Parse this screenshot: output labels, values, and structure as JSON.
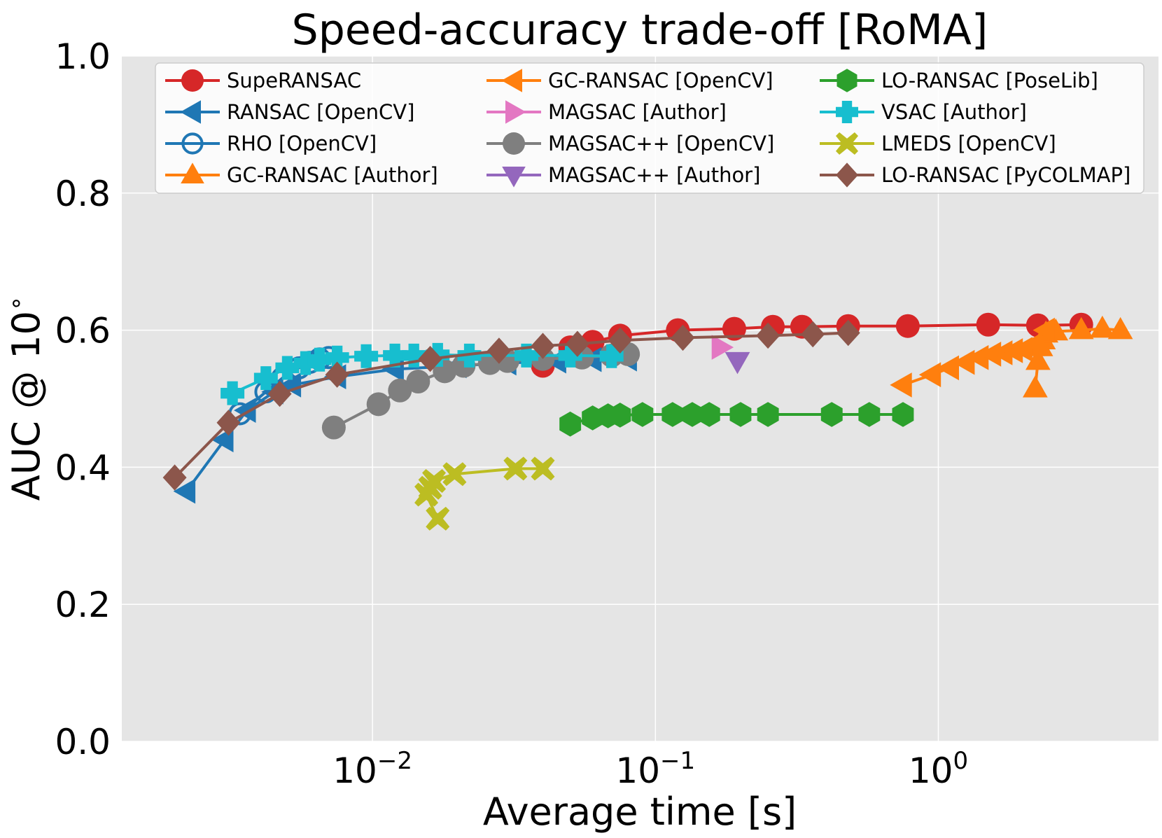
{
  "chart_data": {
    "type": "line",
    "title": "Speed-accuracy trade-off [RoMA]",
    "xlabel": "Average time [s]",
    "ylabel": "AUC @ 10",
    "ylabel_superscript": "∘",
    "xscale": "log",
    "xlim": [
      0.0013,
      6.0
    ],
    "ylim": [
      0.0,
      1.0
    ],
    "grid": true,
    "legend_position": "top",
    "legend_columns": 3,
    "x_ticks": [
      {
        "value": 0.01,
        "base": "10",
        "exp": "−2"
      },
      {
        "value": 0.1,
        "base": "10",
        "exp": "−1"
      },
      {
        "value": 1,
        "base": "10",
        "exp": "0"
      }
    ],
    "y_ticks": [
      {
        "value": 0.0,
        "label": "0.0"
      },
      {
        "value": 0.2,
        "label": "0.2"
      },
      {
        "value": 0.4,
        "label": "0.4"
      },
      {
        "value": 0.6,
        "label": "0.6"
      },
      {
        "value": 0.8,
        "label": "0.8"
      },
      {
        "value": 1.0,
        "label": "1.0"
      }
    ],
    "series": [
      {
        "name": "SupeRANSAC",
        "color": "#d62728",
        "marker": "circle",
        "x": [
          0.04,
          0.05,
          0.06,
          0.075,
          0.12,
          0.19,
          0.26,
          0.33,
          0.48,
          0.78,
          1.5,
          2.25,
          3.2
        ],
        "y": [
          0.548,
          0.575,
          0.583,
          0.592,
          0.6,
          0.602,
          0.605,
          0.605,
          0.606,
          0.606,
          0.608,
          0.607,
          0.608
        ]
      },
      {
        "name": "RANSAC [OpenCV]",
        "color": "#1f77b4",
        "marker": "triangle-left",
        "x": [
          0.0022,
          0.003,
          0.0036,
          0.0045,
          0.0052,
          0.0075,
          0.012,
          0.02,
          0.03,
          0.045,
          0.06,
          0.08
        ],
        "y": [
          0.365,
          0.44,
          0.483,
          0.51,
          0.52,
          0.532,
          0.543,
          0.548,
          0.552,
          0.555,
          0.557,
          0.558
        ]
      },
      {
        "name": "RHO [OpenCV]",
        "color": "#1f77b4",
        "marker": "circle-open",
        "x": [
          0.0034,
          0.0042,
          0.0048,
          0.0055,
          0.006,
          0.0065,
          0.007
        ],
        "y": [
          0.478,
          0.51,
          0.53,
          0.545,
          0.553,
          0.558,
          0.56
        ]
      },
      {
        "name": "GC-RANSAC [Author]",
        "color": "#ff7f0e",
        "marker": "triangle-up",
        "x": [
          2.2,
          2.25,
          2.3,
          2.35,
          2.4,
          2.6,
          3.2,
          3.8,
          4.4
        ],
        "y": [
          0.515,
          0.555,
          0.575,
          0.585,
          0.595,
          0.598,
          0.6,
          0.602,
          0.6
        ]
      },
      {
        "name": "GC-RANSAC [OpenCV]",
        "color": "#ff7f0e",
        "marker": "triangle-left",
        "x": [
          0.75,
          0.95,
          1.1,
          1.25,
          1.4,
          1.55,
          1.7,
          1.85,
          2.0,
          2.2,
          2.4
        ],
        "y": [
          0.52,
          0.535,
          0.545,
          0.553,
          0.56,
          0.565,
          0.567,
          0.57,
          0.572,
          0.58,
          0.6
        ]
      },
      {
        "name": "MAGSAC [Author]",
        "color": "#e377c2",
        "marker": "triangle-right",
        "x": [
          0.17
        ],
        "y": [
          0.575
        ]
      },
      {
        "name": "MAGSAC++ [OpenCV]",
        "color": "#7f7f7f",
        "marker": "circle",
        "x": [
          0.0073,
          0.0105,
          0.0125,
          0.0145,
          0.018,
          0.021,
          0.026,
          0.03,
          0.04,
          0.055,
          0.07,
          0.08
        ],
        "y": [
          0.458,
          0.492,
          0.512,
          0.525,
          0.54,
          0.548,
          0.552,
          0.555,
          0.558,
          0.56,
          0.563,
          0.565
        ]
      },
      {
        "name": "MAGSAC++ [Author]",
        "color": "#9467bd",
        "marker": "triangle-down",
        "x": [
          0.195
        ],
        "y": [
          0.555
        ]
      },
      {
        "name": "LO-RANSAC [PoseLib]",
        "color": "#2ca02c",
        "marker": "hexagon",
        "x": [
          0.05,
          0.06,
          0.068,
          0.075,
          0.09,
          0.115,
          0.135,
          0.155,
          0.2,
          0.25,
          0.42,
          0.57,
          0.75
        ],
        "y": [
          0.463,
          0.472,
          0.475,
          0.476,
          0.477,
          0.477,
          0.477,
          0.477,
          0.477,
          0.477,
          0.477,
          0.477,
          0.477
        ]
      },
      {
        "name": "VSAC [Author]",
        "color": "#17becf",
        "marker": "plus",
        "x": [
          0.0032,
          0.0042,
          0.005,
          0.0058,
          0.0065,
          0.0075,
          0.0095,
          0.012,
          0.014,
          0.017,
          0.022,
          0.035,
          0.05,
          0.07
        ],
        "y": [
          0.508,
          0.53,
          0.545,
          0.552,
          0.557,
          0.56,
          0.562,
          0.563,
          0.563,
          0.564,
          0.563,
          0.563,
          0.563,
          0.562
        ]
      },
      {
        "name": "LMEDS [OpenCV]",
        "color": "#bcbd22",
        "marker": "x",
        "x": [
          0.017,
          0.0155,
          0.016,
          0.0165,
          0.0195,
          0.032,
          0.04
        ],
        "y": [
          0.325,
          0.36,
          0.37,
          0.38,
          0.39,
          0.398,
          0.398
        ]
      },
      {
        "name": "LO-RANSAC [PyCOLMAP]",
        "color": "#8c564b",
        "marker": "diamond",
        "x": [
          0.002,
          0.0031,
          0.0047,
          0.0075,
          0.016,
          0.028,
          0.04,
          0.053,
          0.075,
          0.125,
          0.25,
          0.36,
          0.48
        ],
        "y": [
          0.385,
          0.465,
          0.507,
          0.535,
          0.558,
          0.57,
          0.577,
          0.58,
          0.585,
          0.589,
          0.592,
          0.594,
          0.596
        ]
      }
    ]
  }
}
